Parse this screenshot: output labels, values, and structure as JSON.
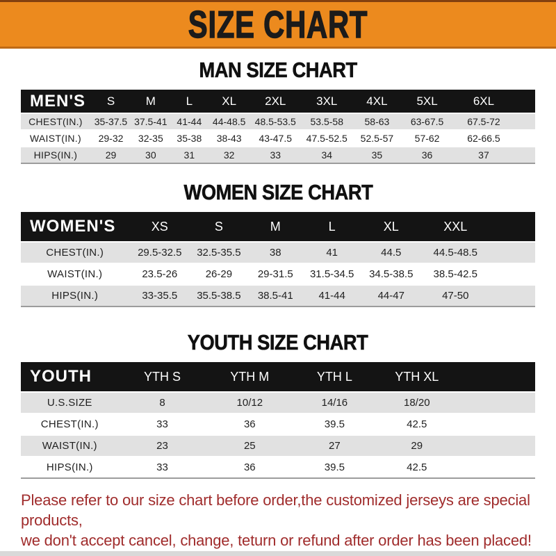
{
  "banner": {
    "title": "SIZE CHART"
  },
  "colors": {
    "banner-orange": "#EC8A1E",
    "bar-black": "#141414",
    "row-gray": "#E1E1E1",
    "warn-red": "#A02C2C"
  },
  "sections": {
    "men": {
      "heading": "MAN SIZE CHART",
      "table": {
        "label": "MEN'S",
        "sizes": [
          "S",
          "M",
          "L",
          "XL",
          "2XL",
          "3XL",
          "4XL",
          "5XL",
          "6XL"
        ],
        "rows": [
          {
            "label": "CHEST(IN.)",
            "values": [
              "35-37.5",
              "37.5-41",
              "41-44",
              "44-48.5",
              "48.5-53.5",
              "53.5-58",
              "58-63",
              "63-67.5",
              "67.5-72"
            ]
          },
          {
            "label": "WAIST(IN.)",
            "values": [
              "29-32",
              "32-35",
              "35-38",
              "38-43",
              "43-47.5",
              "47.5-52.5",
              "52.5-57",
              "57-62",
              "62-66.5"
            ]
          },
          {
            "label": "HIPS(IN.)",
            "values": [
              "29",
              "30",
              "31",
              "32",
              "33",
              "34",
              "35",
              "36",
              "37"
            ]
          }
        ]
      }
    },
    "women": {
      "heading": "WOMEN SIZE CHART",
      "table": {
        "label": "WOMEN'S",
        "sizes": [
          "XS",
          "S",
          "M",
          "L",
          "XL",
          "XXL"
        ],
        "rows": [
          {
            "label": "CHEST(IN.)",
            "values": [
              "29.5-32.5",
              "32.5-35.5",
              "38",
              "41",
              "44.5",
              "44.5-48.5"
            ]
          },
          {
            "label": "WAIST(IN.)",
            "values": [
              "23.5-26",
              "26-29",
              "29-31.5",
              "31.5-34.5",
              "34.5-38.5",
              "38.5-42.5"
            ]
          },
          {
            "label": "HIPS(IN.)",
            "values": [
              "33-35.5",
              "35.5-38.5",
              "38.5-41",
              "41-44",
              "44-47",
              "47-50"
            ]
          }
        ]
      }
    },
    "youth": {
      "heading": "YOUTH SIZE CHART",
      "table": {
        "label": "YOUTH",
        "sizes": [
          "YTH S",
          "YTH M",
          "YTH L",
          "YTH XL"
        ],
        "rows": [
          {
            "label": "U.S.SIZE",
            "values": [
              "8",
              "10/12",
              "14/16",
              "18/20"
            ]
          },
          {
            "label": "CHEST(IN.)",
            "values": [
              "33",
              "36",
              "39.5",
              "42.5"
            ]
          },
          {
            "label": "WAIST(IN.)",
            "values": [
              "23",
              "25",
              "27",
              "29"
            ]
          },
          {
            "label": "HIPS(IN.)",
            "values": [
              "33",
              "36",
              "39.5",
              "42.5"
            ]
          }
        ]
      }
    }
  },
  "disclaimer": {
    "line1": "Please refer to our size chart before order,the customized jerseys are special products,",
    "line2": "we don't accept cancel, change, teturn or refund after order has been placed!"
  }
}
